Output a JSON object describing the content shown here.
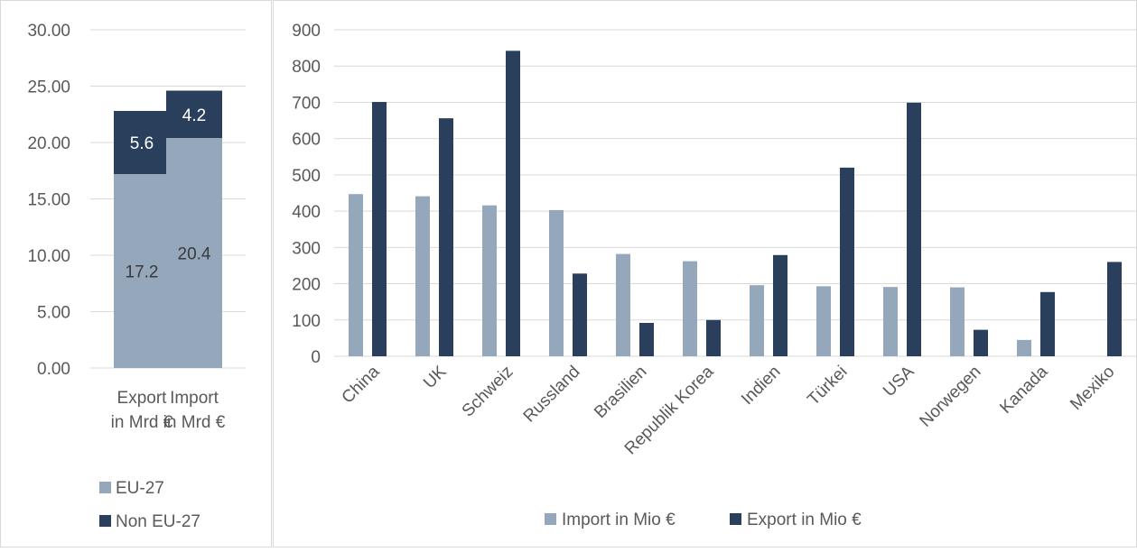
{
  "chart_data": [
    {
      "type": "bar",
      "stacked": true,
      "categories": [
        "Export in Mrd €",
        "Import in Mrd €"
      ],
      "category_lines": [
        [
          "Export",
          "in Mrd €"
        ],
        [
          "Import",
          "in Mrd €"
        ]
      ],
      "series": [
        {
          "name": "EU-27",
          "values": [
            17.2,
            20.4
          ],
          "color": "#94a7bb",
          "label_color": "#3a3a3a"
        },
        {
          "name": "Non EU-27",
          "values": [
            5.6,
            4.2
          ],
          "color": "#293f5b",
          "label_color": "#ffffff"
        }
      ],
      "ylim": [
        0,
        30
      ],
      "yticks": [
        "0.00",
        "5.00",
        "10.00",
        "15.00",
        "20.00",
        "25.00",
        "30.00"
      ],
      "grid": true,
      "legend": "bottom-left"
    },
    {
      "type": "bar",
      "categories": [
        "China",
        "UK",
        "Schweiz",
        "Russland",
        "Brasilien",
        "Republik Korea",
        "Indien",
        "Türkei",
        "USA",
        "Norwegen",
        "Kanada",
        "Mexiko"
      ],
      "series": [
        {
          "name": "Import in Mio €",
          "values": [
            447,
            441,
            416,
            403,
            282,
            262,
            196,
            193,
            191,
            190,
            45,
            0
          ],
          "color": "#94a7bb"
        },
        {
          "name": "Export in Mio €",
          "values": [
            701,
            656,
            842,
            228,
            92,
            100,
            279,
            520,
            699,
            73,
            177,
            260
          ],
          "color": "#293f5b"
        }
      ],
      "ylim": [
        0,
        900
      ],
      "yticks": [
        "0",
        "100",
        "200",
        "300",
        "400",
        "500",
        "600",
        "700",
        "800",
        "900"
      ],
      "grid": true,
      "legend": "bottom"
    }
  ]
}
